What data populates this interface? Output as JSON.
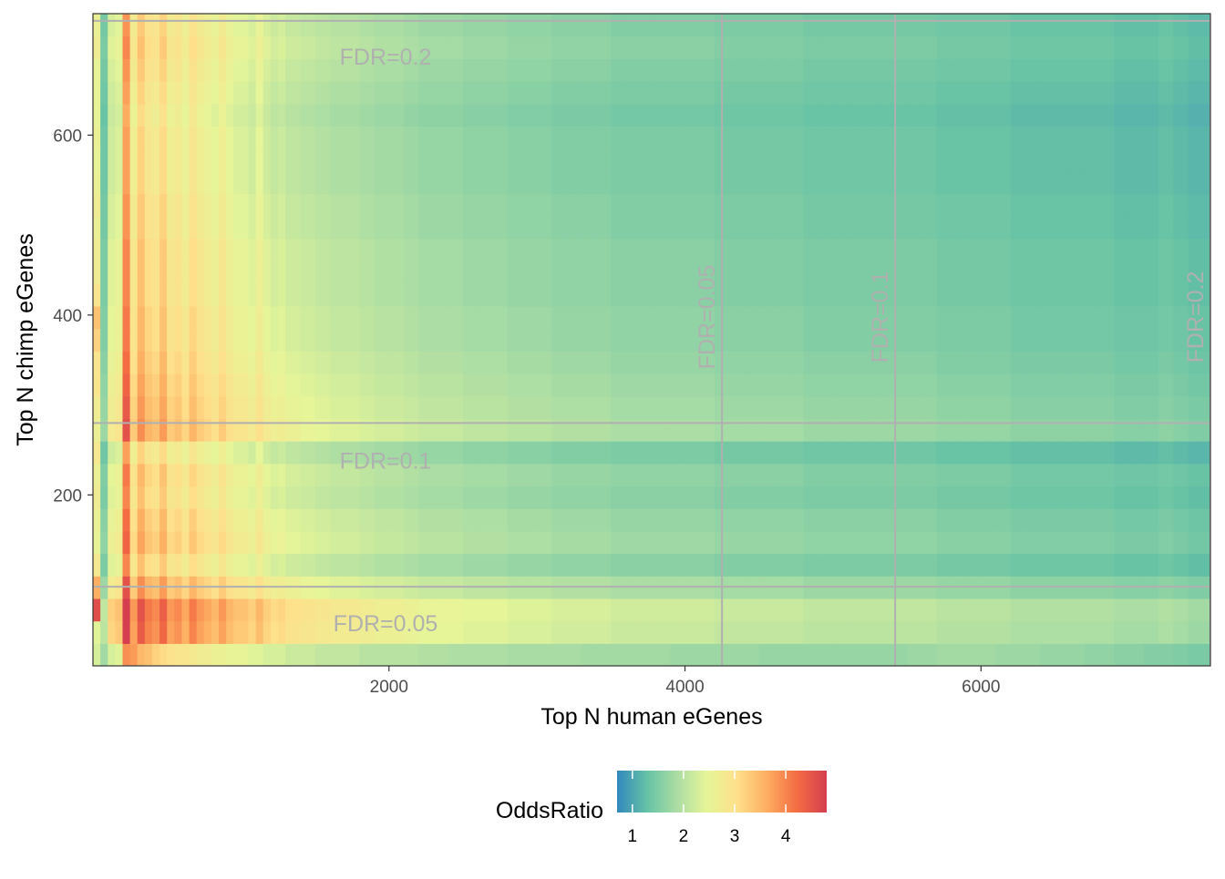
{
  "chart_data": {
    "type": "heatmap",
    "xlabel": "Top N human eGenes",
    "ylabel": "Top N chimp eGenes",
    "xlim": [
      0,
      7550
    ],
    "ylim": [
      10,
      735
    ],
    "x_ticks": [
      2000,
      4000,
      6000
    ],
    "y_ticks": [
      200,
      400,
      600
    ],
    "x_tick_labels": [
      "2000",
      "4000",
      "6000"
    ],
    "y_tick_labels": [
      "200",
      "400",
      "600"
    ],
    "grid": false,
    "legend": {
      "title": "OddsRatio",
      "position": "bottom",
      "ticks": [
        1,
        2,
        3,
        4
      ],
      "tick_labels": [
        "1",
        "2",
        "3",
        "4"
      ],
      "range": [
        0.7,
        4.8
      ],
      "colors": [
        "#3288bd",
        "#66c2a5",
        "#abdda4",
        "#e6f598",
        "#fee08b",
        "#fdae61",
        "#f46d43",
        "#d53e4f"
      ]
    },
    "x_bins": [
      0,
      50,
      100,
      150,
      200,
      250,
      300,
      350,
      400,
      450,
      500,
      550,
      600,
      650,
      700,
      750,
      800,
      850,
      900,
      950,
      1000,
      1050,
      1100,
      1150,
      1200,
      1250,
      1300,
      1400,
      1500,
      1600,
      1700,
      1800,
      1900,
      2000,
      2100,
      2200,
      2300,
      2400,
      2500,
      2600,
      2700,
      2800,
      2900,
      3000,
      3100,
      3200,
      3300,
      3400,
      3500,
      3600,
      3700,
      3800,
      3900,
      4000,
      4100,
      4200,
      4300,
      4400,
      4500,
      4600,
      4700,
      4800,
      4900,
      5000,
      5100,
      5200,
      5300,
      5400,
      5500,
      5600,
      5700,
      5800,
      5900,
      6000,
      6100,
      6200,
      6300,
      6400,
      6500,
      6600,
      6700,
      6800,
      6900,
      7000,
      7100,
      7200,
      7300,
      7400,
      7550
    ],
    "y_bins": [
      10,
      35,
      60,
      85,
      110,
      135,
      160,
      185,
      210,
      235,
      260,
      285,
      310,
      335,
      360,
      385,
      410,
      435,
      460,
      485,
      510,
      535,
      560,
      585,
      610,
      635,
      660,
      685,
      710,
      735
    ],
    "x_profile": [
      2.3,
      1.2,
      2.0,
      2.1,
      3.4,
      2.4,
      2.9,
      2.6,
      2.5,
      2.8,
      2.4,
      2.5,
      2.3,
      2.6,
      2.4,
      2.3,
      2.2,
      2.4,
      2.2,
      2.1,
      2.1,
      2.0,
      2.2,
      2.0,
      1.9,
      1.95,
      1.85,
      1.8,
      1.75,
      1.7,
      1.7,
      1.65,
      1.6,
      1.6,
      1.55,
      1.5,
      1.5,
      1.5,
      1.45,
      1.45,
      1.45,
      1.4,
      1.4,
      1.4,
      1.35,
      1.35,
      1.35,
      1.35,
      1.3,
      1.3,
      1.3,
      1.3,
      1.3,
      1.3,
      1.3,
      1.25,
      1.25,
      1.25,
      1.25,
      1.25,
      1.25,
      1.2,
      1.2,
      1.2,
      1.2,
      1.2,
      1.2,
      1.2,
      1.2,
      1.2,
      1.15,
      1.15,
      1.15,
      1.15,
      1.15,
      1.1,
      1.1,
      1.1,
      1.1,
      1.1,
      1.1,
      1.1,
      1.05,
      1.05,
      1.05,
      1.1,
      1.05,
      1.0
    ],
    "y_profile": [
      1.7,
      1.75,
      1.8,
      1.5,
      1.25,
      1.4,
      1.35,
      1.25,
      1.3,
      1.15,
      1.5,
      1.45,
      1.4,
      1.35,
      1.3,
      1.3,
      1.25,
      1.25,
      1.25,
      1.2,
      1.2,
      1.15,
      1.15,
      1.15,
      1.1,
      1.15,
      1.2,
      1.25,
      1.2
    ],
    "bottom_strip": [
      2.3,
      1.8,
      2.3,
      2.4,
      3.9,
      3.8,
      3.5,
      3.4,
      3.2,
      3.1,
      3.0,
      2.9,
      2.9,
      2.8,
      2.7,
      2.7,
      2.6,
      2.6,
      2.5,
      2.5,
      2.5,
      2.4,
      2.4,
      2.3,
      2.3,
      2.3,
      2.2,
      2.2,
      2.1,
      2.1,
      2.1,
      2.0,
      2.0,
      2.0,
      2.0,
      1.95,
      1.95,
      1.9,
      1.9,
      1.9,
      1.9,
      1.85,
      1.85,
      1.85,
      1.85,
      1.85,
      1.8,
      1.8,
      1.8,
      1.8,
      1.8,
      1.8,
      1.75,
      1.75,
      1.75,
      1.75,
      1.75,
      1.75,
      1.7,
      1.7,
      1.7,
      1.7,
      1.7,
      1.7,
      1.7,
      1.7,
      1.7,
      1.7,
      1.75,
      1.75,
      1.8,
      1.8,
      1.8,
      1.8,
      1.75,
      1.75,
      1.75,
      1.7,
      1.7,
      1.7,
      1.65,
      1.65,
      1.6,
      1.6,
      1.55,
      1.55,
      1.5,
      1.45
    ],
    "left_strip": [
      2.4,
      2.4,
      4.6,
      3.6,
      2.8,
      2.5,
      2.6,
      2.7,
      2.6,
      2.8,
      2.6,
      2.7,
      2.9,
      2.9,
      3.2,
      3.4,
      2.9,
      2.7,
      2.7,
      2.6,
      2.7,
      2.6,
      2.5,
      2.6,
      2.5,
      2.5,
      2.5,
      2.7,
      2.6
    ],
    "fdr_lines": {
      "vertical": [
        {
          "x": 4250,
          "label": "FDR=0.05"
        },
        {
          "x": 5420,
          "label": "FDR=0.1"
        },
        {
          "x": 7550,
          "label": "FDR=0.2"
        }
      ],
      "horizontal": [
        {
          "y": 98,
          "label": "FDR=0.05"
        },
        {
          "y": 280,
          "label": "FDR=0.1"
        },
        {
          "y": 727,
          "label": "FDR=0.2"
        }
      ]
    }
  }
}
